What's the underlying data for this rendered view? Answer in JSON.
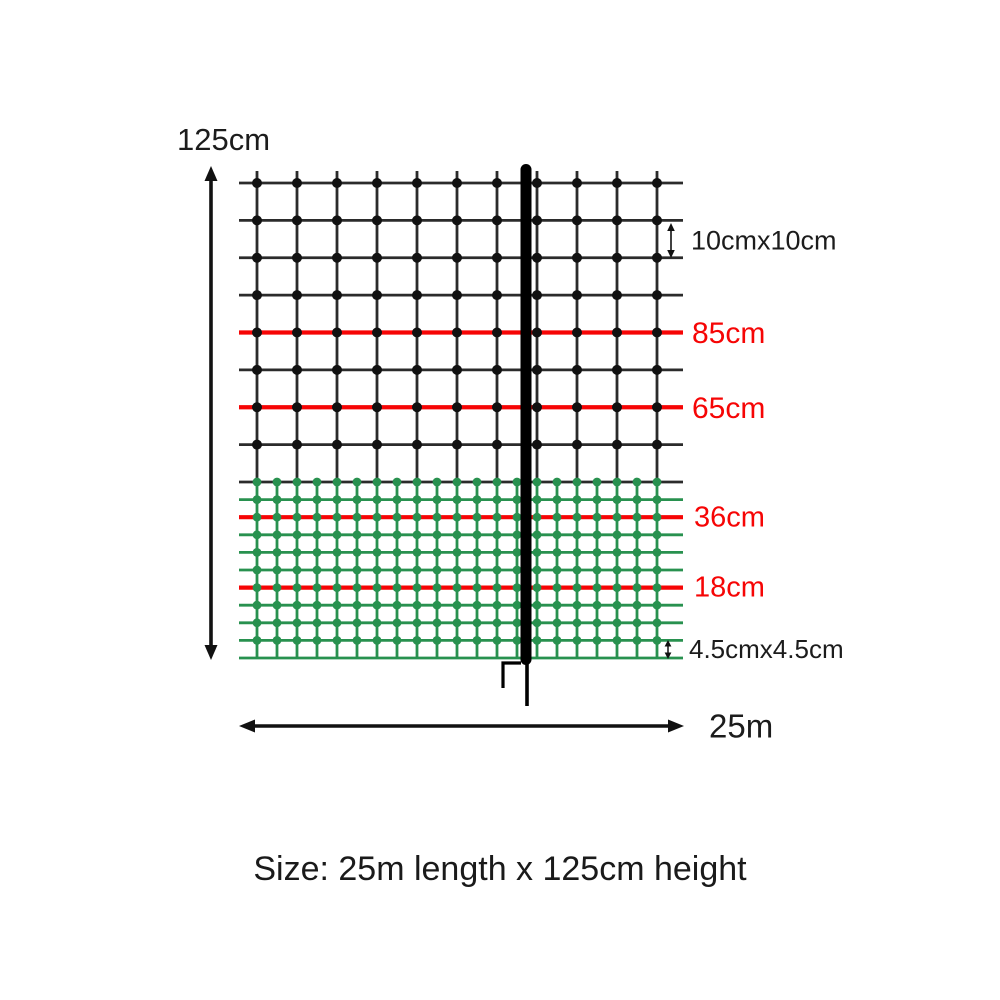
{
  "diagram": {
    "caption": "Size: 25m length x 125cm height",
    "height_label": "125cm",
    "length_label": "25m",
    "upper_mesh_label": "10cmx10cm",
    "lower_mesh_label": "4.5cmx4.5cm",
    "wire_labels": [
      "85cm",
      "65cm",
      "36cm",
      "18cm"
    ],
    "colors": {
      "net_upper": "#2b2b2b",
      "net_lower": "#28914f",
      "electric_wire": "#f60505",
      "dot_upper": "#111111",
      "post": "#000000",
      "arrow": "#111111"
    }
  }
}
